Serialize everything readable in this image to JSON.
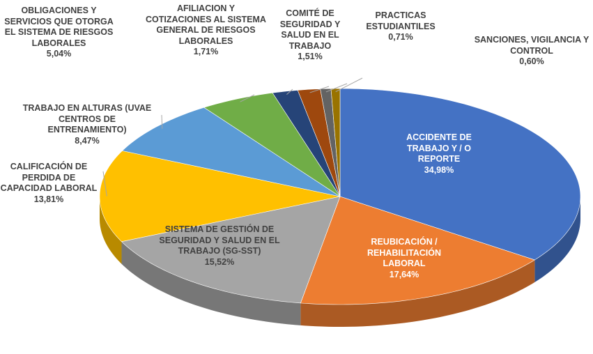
{
  "chart_data": {
    "type": "pie",
    "categories": [
      "ACCIDENTE DE TRABAJO Y / O REPORTE",
      "REUBICACIÓN / REHABILITACIÓN LABORAL",
      "SISTEMA DE GESTIÓN DE SEGURIDAD Y SALUD EN EL TRABAJO (SG-SST)",
      "CALIFICACIÓN DE PERDIDA DE CAPACIDAD LABORAL",
      "TRABAJO EN ALTURAS (UVAE CENTROS DE ENTRENAMIENTO)",
      "OBLIGACIONES Y SERVICIOS QUE OTORGA EL SISTEMA DE RIESGOS LABORALES",
      "AFILIACION Y COTIZACIONES AL SISTEMA GENERAL DE RIESGOS LABORALES",
      "COMITÉ DE SEGURIDAD Y SALUD EN EL TRABAJO",
      "PRACTICAS ESTUDIANTILES",
      "SANCIONES, VIGILANCIA Y CONTROL"
    ],
    "values": [
      34.98,
      17.64,
      15.52,
      13.81,
      8.47,
      5.04,
      1.71,
      1.51,
      0.71,
      0.6
    ],
    "value_labels": [
      "34,98%",
      "17,64%",
      "15,52%",
      "13,81%",
      "8,47%",
      "5,04%",
      "1,71%",
      "1,51%",
      "0,71%",
      "0,60%"
    ],
    "colors": [
      "#4472c4",
      "#ed7d31",
      "#a5a5a5",
      "#ffc000",
      "#5b9bd5",
      "#70ad47",
      "#264478",
      "#9e480e",
      "#636363",
      "#997300"
    ]
  }
}
